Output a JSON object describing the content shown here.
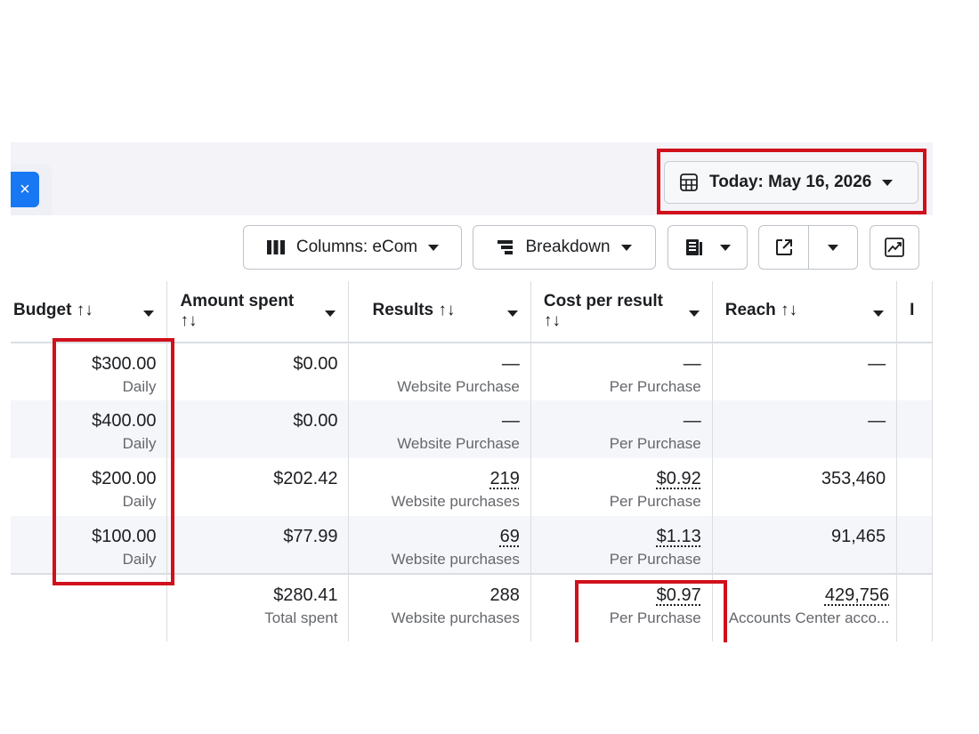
{
  "header": {
    "close_label": "×",
    "date_label": "Today: May 16, 2026"
  },
  "toolbar": {
    "columns_label": "Columns: eCom",
    "breakdown_label": "Breakdown"
  },
  "table": {
    "columns": [
      {
        "label": "Budget",
        "sort": "↑↓"
      },
      {
        "label": "Amount spent",
        "sort": "↑↓"
      },
      {
        "label": "Results",
        "sort": "↑↓"
      },
      {
        "label": "Cost per result",
        "sort": "↑↓"
      },
      {
        "label": "Reach",
        "sort": "↑↓"
      },
      {
        "label": "I"
      }
    ],
    "rows": [
      {
        "budget": "$300.00",
        "budget_type": "Daily",
        "amount_spent": "$0.00",
        "results": "—",
        "results_type": "Website Purchase",
        "cost_per_result": "—",
        "cost_type": "Per Purchase",
        "reach": "—"
      },
      {
        "budget": "$400.00",
        "budget_type": "Daily",
        "amount_spent": "$0.00",
        "results": "—",
        "results_type": "Website Purchase",
        "cost_per_result": "—",
        "cost_type": "Per Purchase",
        "reach": "—"
      },
      {
        "budget": "$200.00",
        "budget_type": "Daily",
        "amount_spent": "$202.42",
        "results": "219",
        "results_type": "Website purchases",
        "cost_per_result": "$0.92",
        "cost_type": "Per Purchase",
        "reach": "353,460"
      },
      {
        "budget": "$100.00",
        "budget_type": "Daily",
        "amount_spent": "$77.99",
        "results": "69",
        "results_type": "Website purchases",
        "cost_per_result": "$1.13",
        "cost_type": "Per Purchase",
        "reach": "91,465"
      }
    ],
    "totals": {
      "amount_spent": "$280.41",
      "amount_spent_label": "Total spent",
      "results": "288",
      "results_label": "Website purchases",
      "cost_per_result": "$0.97",
      "cost_label": "Per Purchase",
      "reach": "429,756",
      "reach_label": "Accounts Center acco..."
    }
  },
  "colors": {
    "highlight": "#d0101b",
    "accent": "#1877f2"
  }
}
